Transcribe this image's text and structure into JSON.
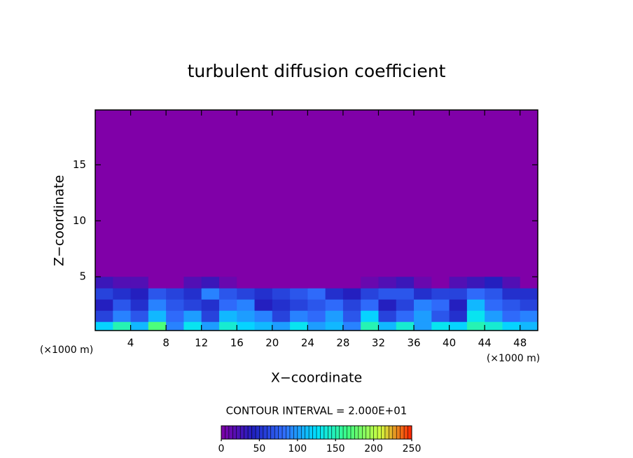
{
  "chart_data": {
    "type": "contour",
    "title": "turbulent diffusion coefficient",
    "x_label": "X−coordinate",
    "y_label": "Z−coordinate",
    "x_unit_left": "(×1000 m)",
    "x_unit_right": "(×1000 m)",
    "contour_label": "CONTOUR INTERVAL = 2.000E+01",
    "xlim": [
      0,
      50
    ],
    "xticks": [
      4,
      8,
      12,
      16,
      20,
      24,
      28,
      32,
      36,
      40,
      44,
      48
    ],
    "ylim": [
      0.2,
      19.9
    ],
    "yticks": [
      5,
      10,
      15
    ],
    "x": [
      1,
      3,
      5,
      7,
      9,
      11,
      13,
      15,
      17,
      19,
      21,
      23,
      25,
      27,
      29,
      31,
      33,
      35,
      37,
      39,
      41,
      43,
      45,
      47,
      49
    ],
    "z": [
      0.5,
      1.5,
      2.5,
      3.5,
      4.5
    ],
    "values": [
      [
        120,
        150,
        110,
        170,
        90,
        130,
        100,
        140,
        120,
        110,
        100,
        130,
        100,
        110,
        90,
        150,
        110,
        140,
        100,
        130,
        120,
        150,
        140,
        120,
        110
      ],
      [
        60,
        90,
        70,
        110,
        80,
        100,
        60,
        110,
        100,
        90,
        60,
        90,
        80,
        100,
        70,
        120,
        60,
        80,
        100,
        70,
        50,
        130,
        100,
        80,
        90
      ],
      [
        40,
        70,
        50,
        90,
        70,
        60,
        50,
        80,
        90,
        40,
        50,
        60,
        70,
        80,
        60,
        80,
        40,
        60,
        90,
        80,
        40,
        110,
        80,
        70,
        60
      ],
      [
        60,
        50,
        40,
        70,
        60,
        50,
        90,
        70,
        60,
        50,
        60,
        70,
        80,
        50,
        40,
        60,
        70,
        70,
        50,
        60,
        60,
        80,
        70,
        50,
        50
      ],
      [
        30,
        20,
        20,
        0,
        0,
        20,
        30,
        10,
        0,
        0,
        0,
        0,
        0,
        0,
        0,
        10,
        20,
        30,
        10,
        0,
        20,
        30,
        40,
        20,
        0
      ]
    ],
    "colorbar": {
      "clim": [
        0,
        250
      ],
      "ticks": [
        0,
        50,
        100,
        150,
        200,
        250
      ],
      "colors": [
        "#8000a8",
        "#2020c0",
        "#3070ff",
        "#00e0ff",
        "#40ff80",
        "#d0ff40",
        "#ff2000"
      ]
    }
  }
}
